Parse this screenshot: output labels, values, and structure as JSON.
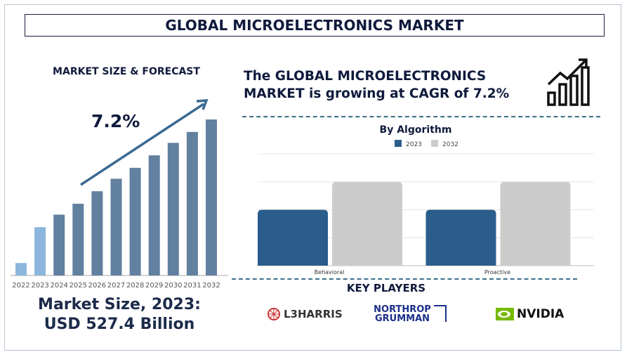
{
  "title": "GLOBAL MICROELECTRONICS MARKET",
  "left": {
    "subtitle": "MARKET SIZE & FORECAST",
    "cagr_label": "7.2%",
    "market_size_line1": "Market Size, 2023:",
    "market_size_line2": "USD 527.4 Billion"
  },
  "headline": {
    "line1": "The GLOBAL MICROELECTRONICS",
    "line2": "MARKET is growing at CAGR of 7.2%"
  },
  "icons": {
    "growth": "bar-chart-growth-arrow-icon"
  },
  "key_players": {
    "title": "KEY PLAYERS",
    "logos": [
      "L3HARRIS",
      "NORTHROP GRUMMAN",
      "NVIDIA"
    ]
  },
  "chart_data": [
    {
      "type": "bar",
      "title": "",
      "categories": [
        "2022",
        "2023",
        "2024",
        "2025",
        "2026",
        "2027",
        "2028",
        "2029",
        "2030",
        "2031",
        "2032"
      ],
      "values": [
        8,
        31,
        39,
        46,
        54,
        62,
        69,
        77,
        85,
        92,
        100
      ],
      "note_scale": "relative",
      "colors": {
        "historic": "#8db6dc",
        "forecast": "#62809f"
      },
      "grid": false
    },
    {
      "type": "bar",
      "title": "By Algorithm",
      "categories": [
        "Behavioral",
        "Proactive"
      ],
      "series": [
        {
          "name": "2023",
          "values": [
            2,
            2
          ],
          "color": "#2a5d8c"
        },
        {
          "name": "2032",
          "values": [
            3,
            3
          ],
          "color": "#cccccc"
        }
      ],
      "ylim": [
        0,
        4
      ],
      "grid": true,
      "legend": "top"
    }
  ]
}
